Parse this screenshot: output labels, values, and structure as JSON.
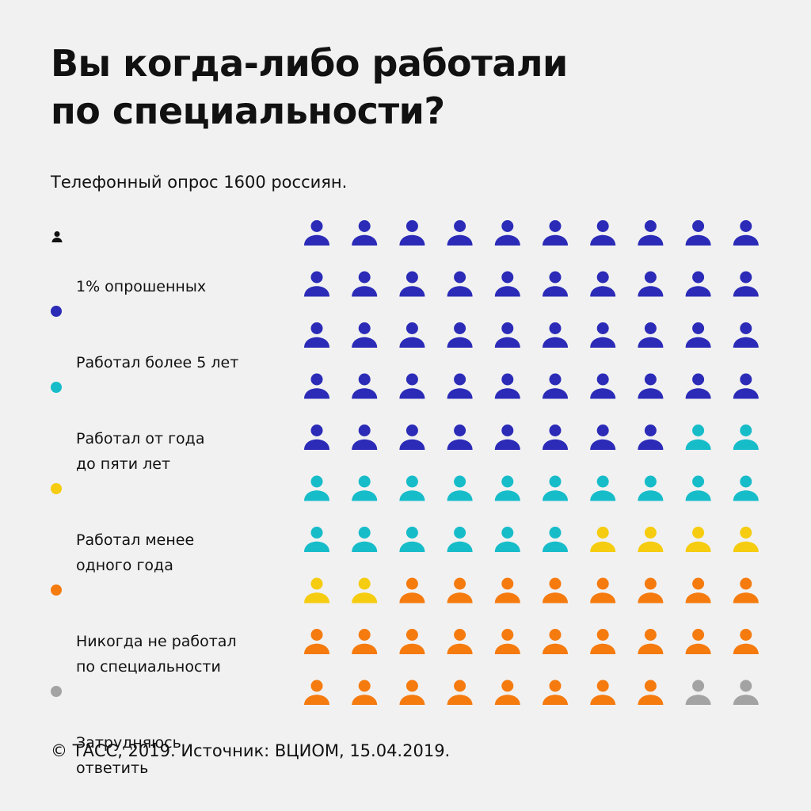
{
  "title_lines": [
    "Вы когда-либо работали",
    "по специальности?"
  ],
  "subtitle": "Телефонный опрос 1600 россиян.",
  "footer": "© ТАСС, 2019. Источник: ВЦИОМ, 15.04.2019.",
  "colors": {
    "more_than_5": "#2b2bb8",
    "one_to_five": "#17bcc9",
    "less_than_1": "#f5cc0f",
    "never": "#f57b0f",
    "hard_to_say": "#a3a3a3",
    "unit_icon": "#111111"
  },
  "legend": [
    {
      "key": "unit",
      "label": "1% опрошенных",
      "icon": "person-icon",
      "color": "#111111"
    },
    {
      "key": "more_than_5",
      "label": "Работал более 5 лет",
      "icon": "dot-icon",
      "color": "#2b2bb8"
    },
    {
      "key": "one_to_five",
      "label": "Работал от года\nдо пяти лет",
      "icon": "dot-icon",
      "color": "#17bcc9"
    },
    {
      "key": "less_than_1",
      "label": "Работал менее\nодного года",
      "icon": "dot-icon",
      "color": "#f5cc0f"
    },
    {
      "key": "never",
      "label": "Никогда не работал\nпо специальности",
      "icon": "dot-icon",
      "color": "#f57b0f"
    },
    {
      "key": "hard_to_say",
      "label": "Затрудняюсь\nответить",
      "icon": "dot-icon",
      "color": "#a3a3a3"
    }
  ],
  "chart_data": {
    "type": "pictogram",
    "unit": "1% опрошенных",
    "grid": {
      "rows": 10,
      "columns": 10
    },
    "categories": [
      "Работал более 5 лет",
      "Работал от года до пяти лет",
      "Работал менее одного года",
      "Никогда не работал по специальности",
      "Затрудняюсь ответить"
    ],
    "values": [
      48,
      18,
      6,
      26,
      2
    ],
    "colors": [
      "#2b2bb8",
      "#17bcc9",
      "#f5cc0f",
      "#f57b0f",
      "#a3a3a3"
    ]
  }
}
